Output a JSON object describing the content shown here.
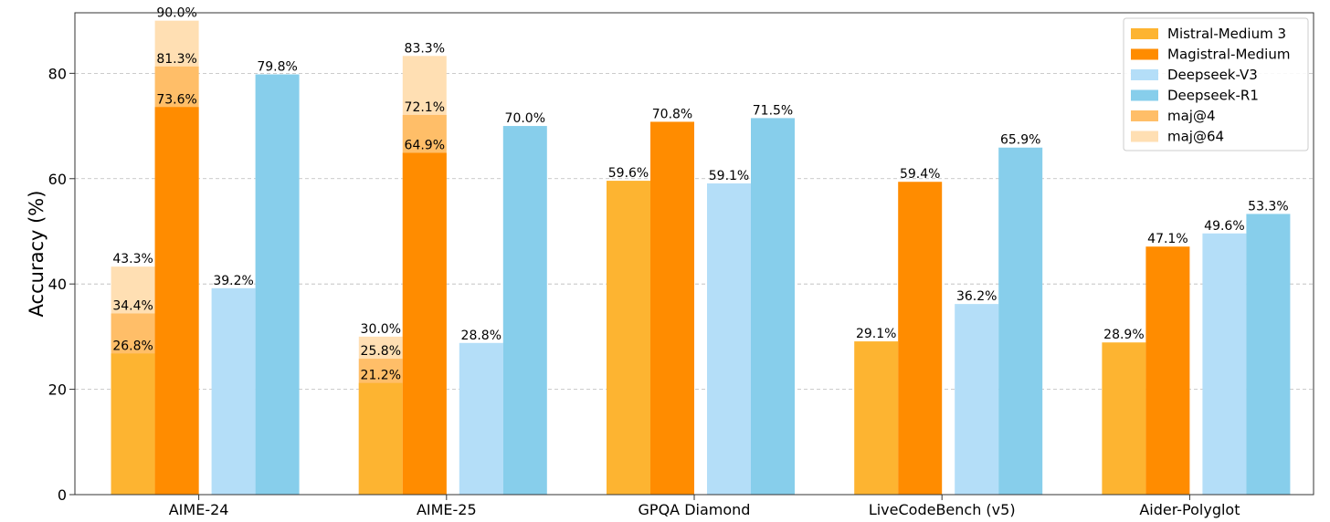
{
  "chart_data": {
    "type": "bar",
    "title": "",
    "xlabel": "",
    "ylabel": "Accuracy (%)",
    "ylim": [
      0,
      91.5
    ],
    "yticks": [
      0,
      20,
      40,
      60,
      80
    ],
    "grid": "y-dashed",
    "legend_position": "top-right",
    "categories": [
      "AIME-24",
      "AIME-25",
      "GPQA Diamond",
      "LiveCodeBench (v5)",
      "Aider-Polyglot"
    ],
    "series": [
      {
        "name": "Mistral-Medium 3",
        "color": "#FDB431",
        "values": [
          26.8,
          21.2,
          59.6,
          29.1,
          28.9
        ]
      },
      {
        "name": "Magistral-Medium",
        "color": "#FF8C00",
        "values": [
          73.6,
          64.9,
          70.8,
          59.4,
          47.1
        ]
      },
      {
        "name": "Deepseek-V3",
        "color": "#B4DEF8",
        "values": [
          39.2,
          28.8,
          59.1,
          36.2,
          49.6
        ]
      },
      {
        "name": "Deepseek-R1",
        "color": "#87CEEB",
        "values": [
          79.8,
          70.0,
          71.5,
          65.9,
          53.3
        ]
      }
    ],
    "stack_overlays": [
      {
        "name": "maj@4",
        "color": "#FFBE68",
        "applies_to": [
          "Mistral-Medium 3",
          "Magistral-Medium"
        ],
        "values": {
          "Mistral-Medium 3": [
            34.4,
            25.8,
            null,
            null,
            null
          ],
          "Magistral-Medium": [
            81.3,
            72.1,
            null,
            null,
            null
          ]
        }
      },
      {
        "name": "maj@64",
        "color": "#FFDFB3",
        "applies_to": [
          "Mistral-Medium 3",
          "Magistral-Medium"
        ],
        "values": {
          "Mistral-Medium 3": [
            43.3,
            30.0,
            null,
            null,
            null
          ],
          "Magistral-Medium": [
            90.0,
            83.3,
            null,
            null,
            null
          ]
        }
      }
    ],
    "label_suffix": "%"
  }
}
